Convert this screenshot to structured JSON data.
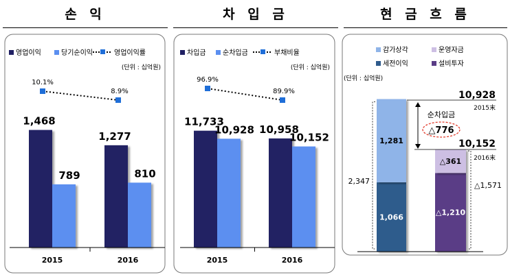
{
  "chart_data": [
    {
      "type": "bar",
      "title": "손 익",
      "unit": "(단위 : 십억원)",
      "categories": [
        "2015",
        "2016"
      ],
      "series": [
        {
          "name": "영업이익",
          "values": [
            1468,
            1277
          ],
          "color": "#202063"
        },
        {
          "name": "당기순이익",
          "values": [
            789,
            810
          ],
          "color": "#5b8ff0"
        }
      ],
      "line_series": {
        "name": "영업이익률",
        "values": [
          10.1,
          8.9
        ],
        "labels": [
          "10.1%",
          "8.9%"
        ],
        "color": "#1f6ed8"
      },
      "value_labels": [
        [
          "1,468",
          "1,277"
        ],
        [
          "789",
          "810"
        ]
      ],
      "ylim": [
        0,
        2000
      ],
      "legend": "top"
    },
    {
      "type": "bar",
      "title": "차 입 금",
      "unit": "(단위 : 십억원)",
      "categories": [
        "2015",
        "2016"
      ],
      "series": [
        {
          "name": "차입금",
          "values": [
            11733,
            10958
          ],
          "color": "#202063"
        },
        {
          "name": "순차입금",
          "values": [
            10928,
            10152
          ],
          "color": "#5b8ff0"
        }
      ],
      "line_series": {
        "name": "부채비율",
        "values": [
          96.9,
          89.9
        ],
        "labels": [
          "96.9%",
          "89.9%"
        ],
        "color": "#1f6ed8"
      },
      "value_labels": [
        [
          "11,733",
          "10,958"
        ],
        [
          "10,928",
          "10,152"
        ]
      ],
      "ylim": [
        0,
        16000
      ],
      "legend": "top"
    },
    {
      "type": "waterfall",
      "title": "현 금 흐 름",
      "unit": "(단위 : 십억원)",
      "legend": [
        {
          "name": "감가상각",
          "color": "#8fb4e8"
        },
        {
          "name": "운영자금",
          "color": "#cdbfe3"
        },
        {
          "name": "세전이익",
          "color": "#2f5b8c"
        },
        {
          "name": "설비투자",
          "color": "#5a3d86"
        }
      ],
      "start_total": {
        "value": 10928,
        "label": "10,928",
        "period": "2015末"
      },
      "end_total": {
        "value": 10152,
        "label": "10,152",
        "period": "2016末"
      },
      "net_change": {
        "name": "순차입금",
        "label": "△776",
        "value": -776
      },
      "inflow": {
        "total": 2347,
        "total_label": "2,347",
        "parts": [
          {
            "name": "세전이익",
            "value": 1066,
            "label": "1,066"
          },
          {
            "name": "감가상각",
            "value": 1281,
            "label": "1,281"
          }
        ]
      },
      "outflow": {
        "total": -1571,
        "total_label": "△1,571",
        "parts": [
          {
            "name": "설비투자",
            "value": -1210,
            "label": "△1,210"
          },
          {
            "name": "운영자금",
            "value": -361,
            "label": "△361"
          }
        ]
      }
    }
  ]
}
